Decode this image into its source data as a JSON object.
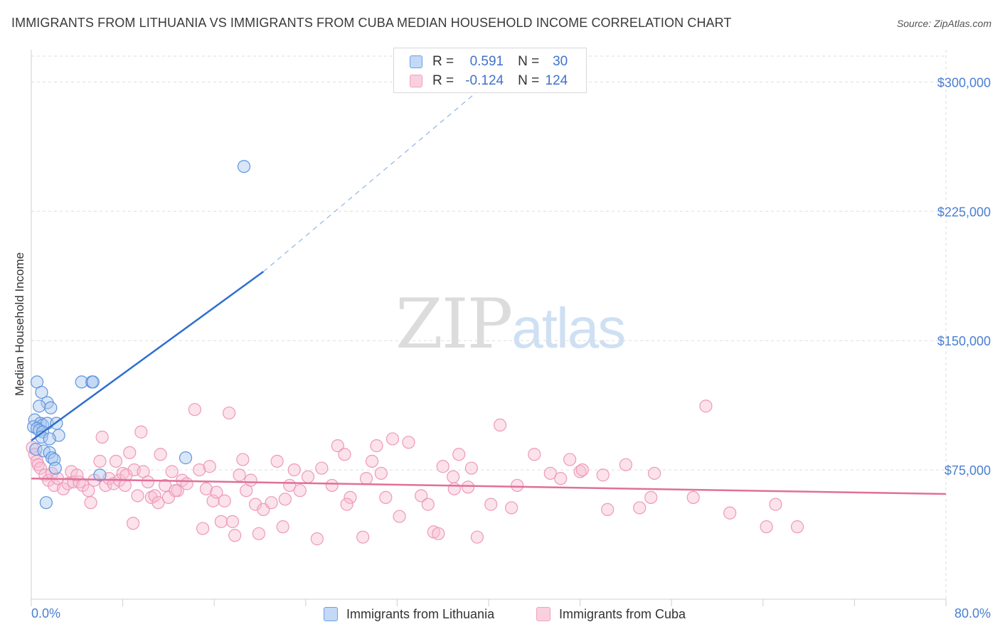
{
  "header": {
    "title": "IMMIGRANTS FROM LITHUANIA VS IMMIGRANTS FROM CUBA MEDIAN HOUSEHOLD INCOME CORRELATION CHART",
    "source": "Source: ZipAtlas.com"
  },
  "watermark": {
    "zip": "ZIP",
    "atlas": "atlas"
  },
  "legend": {
    "lithuania": {
      "r_label": "R =",
      "r_value": "0.591",
      "n_label": "N =",
      "n_value": "30"
    },
    "cuba": {
      "r_label": "R =",
      "r_value": "-0.124",
      "n_label": "N =",
      "n_value": "124"
    }
  },
  "colors": {
    "lithuania": "#6aa0e8",
    "cuba": "#f0a0bc",
    "lithuania_line": "#2f6fcf",
    "cuba_line": "#e0709a",
    "tick_text": "#4a7fd0"
  },
  "chart_data": {
    "type": "scatter",
    "title": "IMMIGRANTS FROM LITHUANIA VS IMMIGRANTS FROM CUBA MEDIAN HOUSEHOLD INCOME CORRELATION CHART",
    "xlabel": "",
    "ylabel": "Median Household Income",
    "xlim": [
      0,
      80
    ],
    "ylim": [
      0,
      315000
    ],
    "x_tick_labels": [
      "0.0%",
      "80.0%"
    ],
    "y_ticks": [
      {
        "value": 300000,
        "label": "$300,000"
      },
      {
        "value": 225000,
        "label": "$225,000"
      },
      {
        "value": 150000,
        "label": "$150,000"
      },
      {
        "value": 75000,
        "label": "$75,000"
      }
    ],
    "grid": true,
    "legend_position": "bottom",
    "series": [
      {
        "name": "Immigrants from Lithuania",
        "points": [
          [
            0.5,
            126000
          ],
          [
            0.9,
            120000
          ],
          [
            1.4,
            114000
          ],
          [
            0.7,
            112000
          ],
          [
            1.7,
            111000
          ],
          [
            0.3,
            104000
          ],
          [
            0.8,
            102000
          ],
          [
            1.0,
            101000
          ],
          [
            1.4,
            102000
          ],
          [
            2.2,
            102000
          ],
          [
            0.2,
            100000
          ],
          [
            0.5,
            99000
          ],
          [
            0.7,
            98000
          ],
          [
            1.0,
            97000
          ],
          [
            2.4,
            95000
          ],
          [
            0.9,
            94000
          ],
          [
            1.6,
            93000
          ],
          [
            0.4,
            87000
          ],
          [
            1.1,
            86000
          ],
          [
            1.6,
            85000
          ],
          [
            1.8,
            82000
          ],
          [
            2.0,
            81000
          ],
          [
            2.1,
            76000
          ],
          [
            6.0,
            72000
          ],
          [
            1.3,
            56000
          ],
          [
            4.4,
            126000
          ],
          [
            5.3,
            126000
          ],
          [
            5.4,
            126000
          ],
          [
            13.5,
            82000
          ],
          [
            18.6,
            251000
          ]
        ],
        "trend_solid": [
          [
            0.0,
            92000
          ],
          [
            20.3,
            190000
          ]
        ],
        "trend_dashed": [
          [
            20.3,
            190000
          ],
          [
            40.0,
            300000
          ]
        ]
      },
      {
        "name": "Immigrants from Cuba",
        "points": [
          [
            0.1,
            88000
          ],
          [
            0.3,
            84000
          ],
          [
            0.5,
            80000
          ],
          [
            0.6,
            78000
          ],
          [
            0.8,
            76000
          ],
          [
            1.2,
            72000
          ],
          [
            1.5,
            69000
          ],
          [
            1.8,
            73000
          ],
          [
            2.0,
            66000
          ],
          [
            2.3,
            70000
          ],
          [
            2.8,
            64000
          ],
          [
            3.2,
            67000
          ],
          [
            3.5,
            74000
          ],
          [
            3.7,
            68000
          ],
          [
            4.2,
            68000
          ],
          [
            4.5,
            66000
          ],
          [
            5.0,
            63000
          ],
          [
            5.2,
            56000
          ],
          [
            5.5,
            69000
          ],
          [
            6.0,
            80000
          ],
          [
            6.2,
            94000
          ],
          [
            6.5,
            66000
          ],
          [
            6.8,
            70000
          ],
          [
            7.2,
            67000
          ],
          [
            7.4,
            80000
          ],
          [
            7.7,
            69000
          ],
          [
            8.0,
            73000
          ],
          [
            8.3,
            72000
          ],
          [
            8.6,
            85000
          ],
          [
            8.9,
            44000
          ],
          [
            9.0,
            75000
          ],
          [
            9.3,
            60000
          ],
          [
            9.6,
            97000
          ],
          [
            9.8,
            74000
          ],
          [
            10.2,
            68000
          ],
          [
            10.5,
            59000
          ],
          [
            10.8,
            60000
          ],
          [
            11.1,
            56000
          ],
          [
            11.3,
            84000
          ],
          [
            11.7,
            66000
          ],
          [
            12.0,
            59000
          ],
          [
            12.3,
            74000
          ],
          [
            12.8,
            63000
          ],
          [
            13.2,
            69000
          ],
          [
            13.6,
            67000
          ],
          [
            14.3,
            110000
          ],
          [
            14.7,
            75000
          ],
          [
            15.0,
            41000
          ],
          [
            15.3,
            64000
          ],
          [
            15.6,
            77000
          ],
          [
            15.9,
            57000
          ],
          [
            16.2,
            62000
          ],
          [
            16.6,
            45000
          ],
          [
            16.9,
            57000
          ],
          [
            17.3,
            108000
          ],
          [
            17.6,
            45000
          ],
          [
            17.8,
            37000
          ],
          [
            18.2,
            72000
          ],
          [
            18.5,
            81000
          ],
          [
            18.8,
            63000
          ],
          [
            19.2,
            69000
          ],
          [
            19.6,
            55000
          ],
          [
            19.9,
            38000
          ],
          [
            20.3,
            52000
          ],
          [
            21.0,
            56000
          ],
          [
            21.5,
            80000
          ],
          [
            22.0,
            42000
          ],
          [
            22.6,
            66000
          ],
          [
            23.0,
            75000
          ],
          [
            23.5,
            63000
          ],
          [
            24.2,
            71000
          ],
          [
            25.0,
            35000
          ],
          [
            25.4,
            76000
          ],
          [
            26.3,
            66000
          ],
          [
            26.8,
            89000
          ],
          [
            27.4,
            84000
          ],
          [
            27.9,
            59000
          ],
          [
            29.0,
            36000
          ],
          [
            29.3,
            70000
          ],
          [
            29.8,
            80000
          ],
          [
            30.2,
            89000
          ],
          [
            30.6,
            73000
          ],
          [
            31.0,
            59000
          ],
          [
            31.6,
            93000
          ],
          [
            32.2,
            48000
          ],
          [
            33.0,
            91000
          ],
          [
            34.1,
            60000
          ],
          [
            34.7,
            55000
          ],
          [
            35.2,
            39000
          ],
          [
            35.6,
            38000
          ],
          [
            36.0,
            77000
          ],
          [
            36.9,
            71000
          ],
          [
            37.4,
            84000
          ],
          [
            38.2,
            65000
          ],
          [
            38.5,
            76000
          ],
          [
            39.0,
            36000
          ],
          [
            40.2,
            55000
          ],
          [
            41.0,
            101000
          ],
          [
            42.0,
            53000
          ],
          [
            42.5,
            66000
          ],
          [
            44.0,
            84000
          ],
          [
            45.4,
            73000
          ],
          [
            46.3,
            70000
          ],
          [
            47.1,
            81000
          ],
          [
            48.0,
            74000
          ],
          [
            48.2,
            75000
          ],
          [
            50.0,
            72000
          ],
          [
            50.4,
            52000
          ],
          [
            52.0,
            78000
          ],
          [
            53.2,
            53000
          ],
          [
            54.2,
            59000
          ],
          [
            54.5,
            73000
          ],
          [
            57.9,
            59000
          ],
          [
            59.0,
            112000
          ],
          [
            61.1,
            50000
          ],
          [
            64.3,
            42000
          ],
          [
            65.1,
            55000
          ],
          [
            67.0,
            42000
          ],
          [
            8.2,
            66000
          ],
          [
            12.6,
            63000
          ],
          [
            22.2,
            58000
          ],
          [
            27.6,
            55000
          ],
          [
            37.0,
            64000
          ],
          [
            4.0,
            72000
          ]
        ],
        "trend_solid": [
          [
            0.0,
            70000
          ],
          [
            80.0,
            61000
          ]
        ]
      }
    ]
  },
  "bottom_legend": {
    "lithuania": "Immigrants from Lithuania",
    "cuba": "Immigrants from Cuba"
  }
}
